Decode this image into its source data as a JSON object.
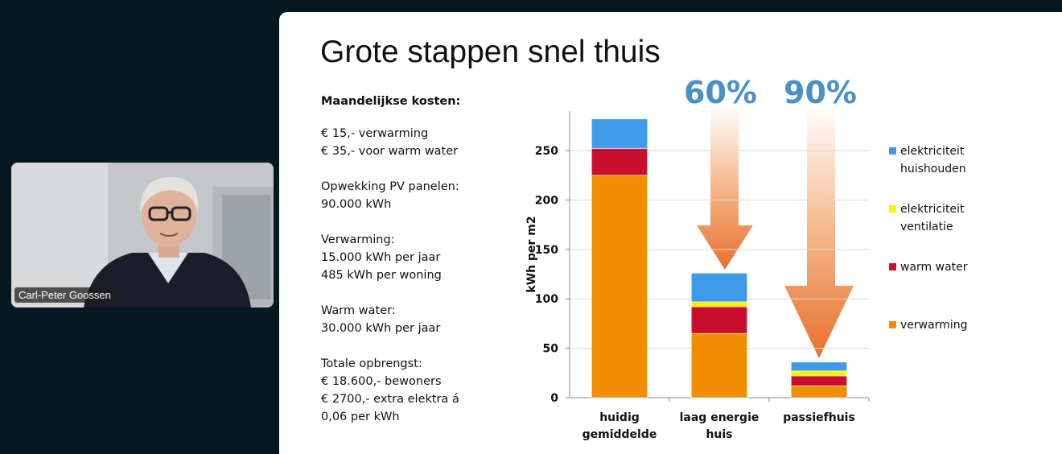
{
  "participant": {
    "name": "Carl-Peter Goossen"
  },
  "slide": {
    "title": "Grote stappen snel thuis",
    "heading": "Maandelijkse kosten:",
    "paragraphs": [
      [
        "€ 15,- verwarming",
        "€ 35,- voor warm water"
      ],
      [
        "Opwekking PV panelen:",
        "90.000 kWh"
      ],
      [
        "Verwarming:",
        "15.000 kWh per jaar",
        "485 kWh per woning"
      ],
      [
        "Warm water:",
        "30.000 kWh per jaar"
      ],
      [
        "Totale opbrengst:",
        "€ 18.600,- bewoners",
        "€ 2700,- extra elektra á",
        "0,06 per kWh"
      ]
    ]
  },
  "chart_data": {
    "type": "bar",
    "stacked": true,
    "y_label": "kWh per m2",
    "annotations": [
      "60%",
      "90%"
    ],
    "categories": [
      "huidig gemiddelde",
      "laag energie huis",
      "passiefhuis"
    ],
    "series": [
      {
        "name": "elektriciteit huishouden",
        "color": "#3d9be9",
        "values": [
          30,
          29,
          9
        ]
      },
      {
        "name": "elektriciteit ventilatie",
        "color": "#fff200",
        "values": [
          0,
          5,
          5
        ]
      },
      {
        "name": "warm water",
        "color": "#c8102e",
        "values": [
          27,
          27,
          10
        ]
      },
      {
        "name": "verwarming",
        "color": "#f28c00",
        "values": [
          225,
          65,
          12
        ]
      }
    ],
    "ylim": [
      0,
      290
    ],
    "yticks": [
      0,
      50,
      100,
      150,
      200,
      250
    ],
    "grid": true,
    "legend": "right"
  }
}
